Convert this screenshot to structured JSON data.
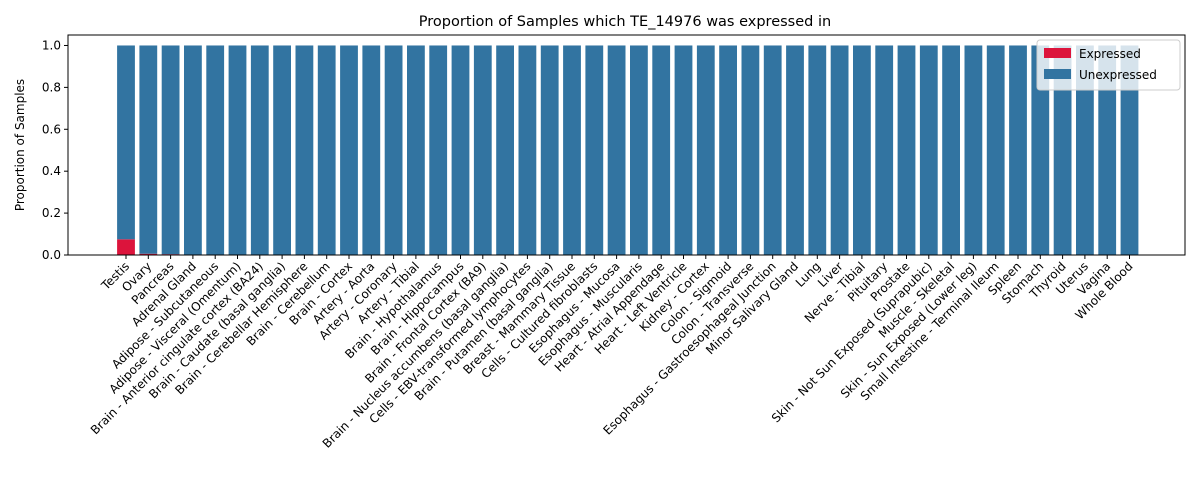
{
  "chart_data": {
    "type": "bar",
    "stacked": true,
    "title": "Proportion of Samples which TE_14976 was expressed in",
    "xlabel": "",
    "ylabel": "Proportion of Samples",
    "ylim": [
      0,
      1.05
    ],
    "yticks": [
      "0.0",
      "0.2",
      "0.4",
      "0.6",
      "0.8",
      "1.0"
    ],
    "grid": false,
    "legend_position": "top-right",
    "categories": [
      "Testis",
      "Ovary",
      "Pancreas",
      "Adrenal Gland",
      "Adipose - Subcutaneous",
      "Adipose - Visceral (Omentum)",
      "Brain - Anterior cingulate cortex (BA24)",
      "Brain - Caudate (basal ganglia)",
      "Brain - Cerebellar Hemisphere",
      "Brain - Cerebellum",
      "Brain - Cortex",
      "Artery - Aorta",
      "Artery - Coronary",
      "Artery - Tibial",
      "Brain - Hypothalamus",
      "Brain - Hippocampus",
      "Brain - Frontal Cortex (BA9)",
      "Brain - Nucleus accumbens (basal ganglia)",
      "Cells - EBV-transformed lymphocytes",
      "Brain - Putamen (basal ganglia)",
      "Breast - Mammary Tissue",
      "Cells - Cultured fibroblasts",
      "Esophagus - Mucosa",
      "Esophagus - Muscularis",
      "Heart - Atrial Appendage",
      "Heart - Left Ventricle",
      "Kidney - Cortex",
      "Colon - Sigmoid",
      "Colon - Transverse",
      "Esophagus - Gastroesophageal Junction",
      "Minor Salivary Gland",
      "Lung",
      "Liver",
      "Nerve - Tibial",
      "Pituitary",
      "Prostate",
      "Skin - Not Sun Exposed (Suprapubic)",
      "Muscle - Skeletal",
      "Skin - Sun Exposed (Lower leg)",
      "Small Intestine - Terminal Ileum",
      "Spleen",
      "Stomach",
      "Thyroid",
      "Uterus",
      "Vagina",
      "Whole Blood"
    ],
    "series": [
      {
        "name": "Expressed",
        "color": "#dc143c",
        "values": [
          0.075,
          0.006,
          0.004,
          0,
          0,
          0,
          0,
          0,
          0,
          0,
          0,
          0,
          0,
          0,
          0,
          0,
          0,
          0,
          0,
          0,
          0,
          0,
          0,
          0,
          0,
          0,
          0,
          0,
          0,
          0,
          0,
          0,
          0,
          0,
          0,
          0,
          0,
          0,
          0,
          0,
          0,
          0,
          0,
          0,
          0,
          0
        ]
      },
      {
        "name": "Unexpressed",
        "color": "#3274a1",
        "values": [
          0.925,
          0.994,
          0.996,
          1,
          1,
          1,
          1,
          1,
          1,
          1,
          1,
          1,
          1,
          1,
          1,
          1,
          1,
          1,
          1,
          1,
          1,
          1,
          1,
          1,
          1,
          1,
          1,
          1,
          1,
          1,
          1,
          1,
          1,
          1,
          1,
          1,
          1,
          1,
          1,
          1,
          1,
          1,
          1,
          1,
          1,
          1
        ]
      }
    ]
  }
}
